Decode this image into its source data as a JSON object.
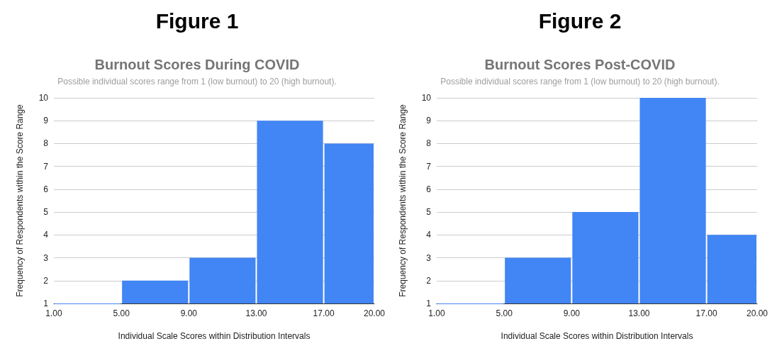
{
  "chart_data": [
    {
      "type": "histogram",
      "annotations": [
        "Figure 1"
      ],
      "title": "Burnout Scores During COVID",
      "subtitle": "Possible individual scores range from 1 (low burnout) to 20 (high burnout).",
      "xlabel": "Individual Scale Scores within Distribution Intervals",
      "ylabel": "Frequency of Respondents within the Score Range",
      "bins": [
        1,
        5,
        9,
        13,
        17,
        20
      ],
      "values": [
        1,
        2,
        3,
        9,
        8
      ],
      "color": "#4285f4",
      "xlim": [
        1,
        20
      ],
      "xticks": [
        {
          "value": 1,
          "label": "1.00"
        },
        {
          "value": 5,
          "label": "5.00"
        },
        {
          "value": 9,
          "label": "9.00"
        },
        {
          "value": 13,
          "label": "13.00"
        },
        {
          "value": 17,
          "label": "17.00"
        },
        {
          "value": 20,
          "label": "20.00"
        }
      ],
      "ylim": [
        1,
        10
      ],
      "yticks": [
        1,
        2,
        3,
        4,
        5,
        6,
        7,
        8,
        9,
        10
      ],
      "grid": "y"
    },
    {
      "type": "histogram",
      "annotations": [
        "Figure 2"
      ],
      "title": "Burnout Scores Post-COVID",
      "subtitle": "Possible individual scores range from 1 (low burnout) to 20 (high burnout).",
      "xlabel": "Individual Scale Scores within Distribution Intervals",
      "ylabel": "Frequency of Respondents within the Score Range",
      "bins": [
        1,
        5,
        9,
        13,
        17,
        20
      ],
      "values": [
        1,
        3,
        5,
        10,
        4
      ],
      "color": "#4285f4",
      "xlim": [
        1,
        20
      ],
      "xticks": [
        {
          "value": 1,
          "label": "1.00"
        },
        {
          "value": 5,
          "label": "5.00"
        },
        {
          "value": 9,
          "label": "9.00"
        },
        {
          "value": 13,
          "label": "13.00"
        },
        {
          "value": 17,
          "label": "17.00"
        },
        {
          "value": 20,
          "label": "20.00"
        }
      ],
      "ylim": [
        1,
        10
      ],
      "yticks": [
        1,
        2,
        3,
        4,
        5,
        6,
        7,
        8,
        9,
        10
      ],
      "grid": "y"
    }
  ]
}
